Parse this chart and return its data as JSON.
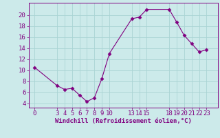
{
  "x": [
    0,
    3,
    4,
    5,
    6,
    7,
    8,
    9,
    10,
    13,
    14,
    15,
    18,
    19,
    20,
    21,
    22,
    23
  ],
  "y": [
    10.5,
    7.2,
    6.5,
    6.7,
    5.5,
    4.3,
    5.0,
    8.5,
    13.0,
    19.3,
    19.6,
    21.0,
    21.0,
    18.7,
    16.3,
    14.8,
    13.3,
    13.7
  ],
  "xticks": [
    0,
    3,
    4,
    5,
    6,
    7,
    8,
    9,
    10,
    13,
    14,
    15,
    18,
    19,
    20,
    21,
    22,
    23
  ],
  "yticks": [
    4,
    6,
    8,
    10,
    12,
    14,
    16,
    18,
    20
  ],
  "ylim": [
    3.2,
    22.2
  ],
  "xlim": [
    -0.8,
    24.5
  ],
  "line_color": "#800080",
  "marker": "D",
  "marker_size": 2.5,
  "bg_color": "#cceaea",
  "grid_color": "#aad4d4",
  "xlabel": "Windchill (Refroidissement éolien,°C)",
  "xlabel_fontsize": 6.5,
  "tick_fontsize": 6.5,
  "tick_color": "#800080",
  "label_color": "#800080",
  "spine_color": "#800080"
}
